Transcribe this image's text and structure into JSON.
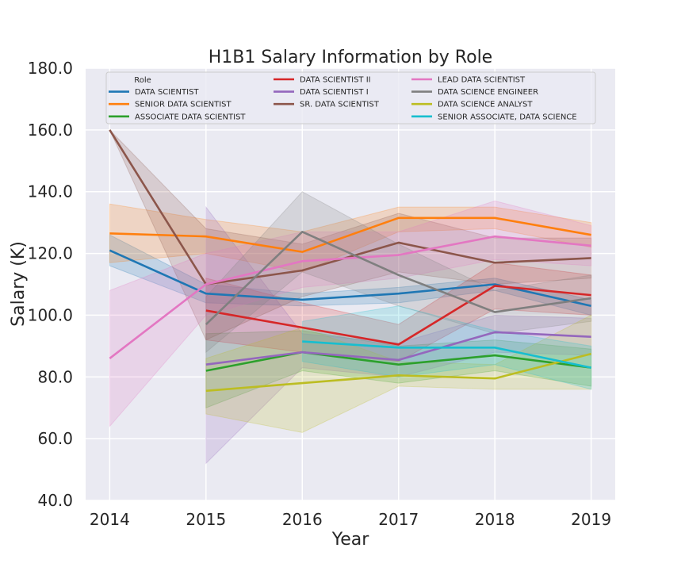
{
  "chart_data": {
    "type": "line",
    "title": "H1B1 Salary Information by Role",
    "xlabel": "Year",
    "ylabel": "Salary (K)",
    "ylim": [
      40,
      180
    ],
    "xlim": [
      2013.75,
      2019.25
    ],
    "x_ticks": [
      "2014",
      "2015",
      "2016",
      "2017",
      "2018",
      "2019"
    ],
    "y_ticks": [
      "40.0",
      "60.0",
      "80.0",
      "100.0",
      "120.0",
      "140.0",
      "160.0",
      "180.0"
    ],
    "grid": true,
    "legend_title": "Role",
    "legend_position": "top",
    "series": [
      {
        "name": "DATA SCIENTIST",
        "color": "#1f77b4",
        "x": [
          2014,
          2015,
          2016,
          2017,
          2018,
          2019
        ],
        "values": [
          121,
          107,
          105,
          107,
          110,
          103
        ],
        "lower": [
          116,
          104,
          103,
          104,
          108,
          100
        ],
        "upper": [
          126,
          110,
          107,
          109,
          112,
          105
        ]
      },
      {
        "name": "SENIOR DATA SCIENTIST",
        "color": "#ff7f0e",
        "x": [
          2014,
          2015,
          2016,
          2017,
          2018,
          2019
        ],
        "values": [
          126.5,
          125.5,
          120.5,
          131.5,
          131.5,
          126
        ],
        "lower": [
          117,
          120,
          114,
          127,
          128,
          122
        ],
        "upper": [
          136,
          131,
          127,
          135,
          135,
          130
        ]
      },
      {
        "name": "ASSOCIATE DATA SCIENTIST",
        "color": "#2ca02c",
        "x": [
          2015,
          2016,
          2017,
          2018,
          2019
        ],
        "values": [
          82,
          88,
          84,
          87,
          83
        ],
        "lower": [
          70,
          82,
          78,
          82,
          77
        ],
        "upper": [
          94,
          95,
          90,
          92,
          89
        ]
      },
      {
        "name": "DATA SCIENTIST II",
        "color": "#d62728",
        "x": [
          2015,
          2016,
          2017,
          2018,
          2019
        ],
        "values": [
          101.5,
          96,
          90.5,
          109.5,
          106.5
        ],
        "lower": [
          92,
          88,
          85,
          102,
          100
        ],
        "upper": [
          112,
          104,
          97,
          117,
          113
        ]
      },
      {
        "name": "DATA SCIENTIST I",
        "color": "#9467bd",
        "x": [
          2015,
          2016,
          2017,
          2018,
          2019
        ],
        "values": [
          84,
          88,
          85.5,
          94.5,
          93
        ],
        "lower": [
          52,
          83,
          80,
          88,
          87
        ],
        "upper": [
          135,
          94,
          91,
          100,
          99
        ]
      },
      {
        "name": "SR. DATA SCIENTIST",
        "color": "#8c564b",
        "x": [
          2014,
          2015,
          2016,
          2017,
          2018,
          2019
        ],
        "values": [
          160,
          110,
          114.5,
          123.5,
          117,
          118.5
        ],
        "lower": [
          160,
          92,
          106,
          114,
          110,
          112
        ],
        "upper": [
          160,
          128,
          123,
          133,
          125,
          125
        ]
      },
      {
        "name": "LEAD DATA SCIENTIST",
        "color": "#e377c2",
        "x": [
          2014,
          2015,
          2016,
          2017,
          2018,
          2019
        ],
        "values": [
          86,
          110,
          117.5,
          119.5,
          125.5,
          122.5
        ],
        "lower": [
          64,
          100,
          109,
          112,
          118,
          116
        ],
        "upper": [
          108,
          120,
          127,
          127,
          137,
          129
        ]
      },
      {
        "name": "DATA SCIENCE ENGINEER",
        "color": "#7f7f7f",
        "x": [
          2015,
          2016,
          2017,
          2018,
          2019
        ],
        "values": [
          97,
          127,
          113,
          101,
          105.5
        ],
        "lower": [
          88,
          114,
          103,
          94,
          98
        ],
        "upper": [
          106,
          140,
          123,
          108,
          113
        ]
      },
      {
        "name": "DATA SCIENCE ANALYST",
        "color": "#bcbd22",
        "x": [
          2015,
          2016,
          2017,
          2018,
          2019
        ],
        "values": [
          75.5,
          78,
          80.5,
          79.5,
          87.5
        ],
        "lower": [
          68,
          62,
          77,
          76,
          76
        ],
        "upper": [
          86,
          96,
          85,
          84,
          100
        ]
      },
      {
        "name": "SENIOR ASSOCIATE, DATA SCIENCE",
        "color": "#17becf",
        "x": [
          2016,
          2017,
          2018,
          2019
        ],
        "values": [
          91.5,
          89.5,
          89.5,
          83
        ],
        "lower": [
          85,
          80,
          84,
          76
        ],
        "upper": [
          98,
          103,
          95,
          90
        ]
      }
    ]
  }
}
